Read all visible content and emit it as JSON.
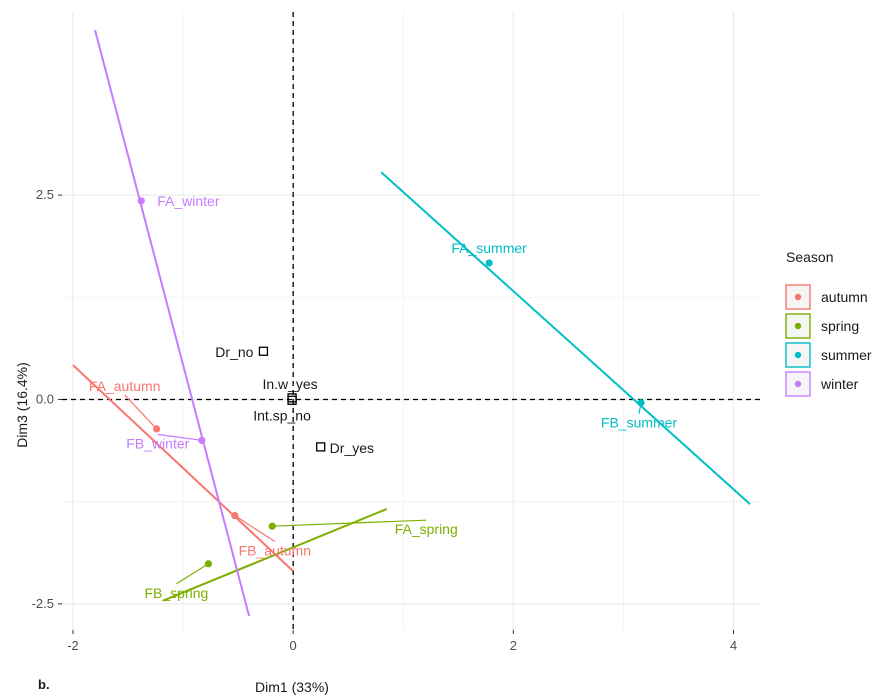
{
  "chart_data": {
    "type": "scatter",
    "xlabel": "Dim1 (33%)",
    "ylabel": "Dim3 (16.4%)",
    "xlim": [
      -2.1,
      4.25
    ],
    "ylim": [
      -2.82,
      4.74
    ],
    "xticks": [
      -2,
      0,
      2,
      4
    ],
    "xtick_labels": [
      "-2",
      "0",
      "2",
      "4"
    ],
    "yticks": [
      -2.5,
      0.0,
      2.5
    ],
    "ytick_labels": [
      "-2.5",
      "0.0",
      "2.5"
    ],
    "grid": true,
    "reference_lines": {
      "x": 0,
      "y": 0,
      "style": "dashed"
    },
    "legend": {
      "title": "Season",
      "position": "right",
      "entries": [
        "autumn",
        "spring",
        "summer",
        "winter"
      ]
    },
    "panel_tag": "b.",
    "colors": {
      "autumn": "#F8766D",
      "spring": "#7CAE00",
      "summer": "#00BFC4",
      "winter": "#C77CFF"
    },
    "series": [
      {
        "name": "autumn",
        "line": [
          [
            -2.0,
            0.42
          ],
          [
            0.0,
            -2.1
          ]
        ],
        "points": [
          {
            "label": "FA_autumn",
            "x": -1.24,
            "y": -0.36
          },
          {
            "label": "FB_autumn",
            "x": -0.53,
            "y": -1.42
          }
        ]
      },
      {
        "name": "spring",
        "line": [
          [
            -1.18,
            -2.46
          ],
          [
            0.85,
            -1.34
          ]
        ],
        "points": [
          {
            "label": "FA_spring",
            "x": -0.19,
            "y": -1.55
          },
          {
            "label": "FB_spring",
            "x": -0.77,
            "y": -2.01
          }
        ]
      },
      {
        "name": "summer",
        "line": [
          [
            0.8,
            2.78
          ],
          [
            4.15,
            -1.28
          ]
        ],
        "points": [
          {
            "label": "FA_summer",
            "x": 1.78,
            "y": 1.67
          },
          {
            "label": "FB_summer",
            "x": 3.16,
            "y": -0.04
          }
        ]
      },
      {
        "name": "winter",
        "line": [
          [
            -1.8,
            4.52
          ],
          [
            -0.4,
            -2.65
          ]
        ],
        "points": [
          {
            "label": "FA_winter",
            "x": -1.38,
            "y": 2.43
          },
          {
            "label": "FB_winter",
            "x": -0.83,
            "y": -0.5
          }
        ]
      }
    ],
    "supplementary": [
      {
        "label": "Dr_no",
        "x": -0.27,
        "y": 0.59
      },
      {
        "label": "In.w_yes",
        "x": -0.01,
        "y": 0.02
      },
      {
        "label": "Int.sp_no",
        "x": -0.01,
        "y": -0.01
      },
      {
        "label": "Dr_yes",
        "x": 0.25,
        "y": -0.58
      }
    ]
  }
}
